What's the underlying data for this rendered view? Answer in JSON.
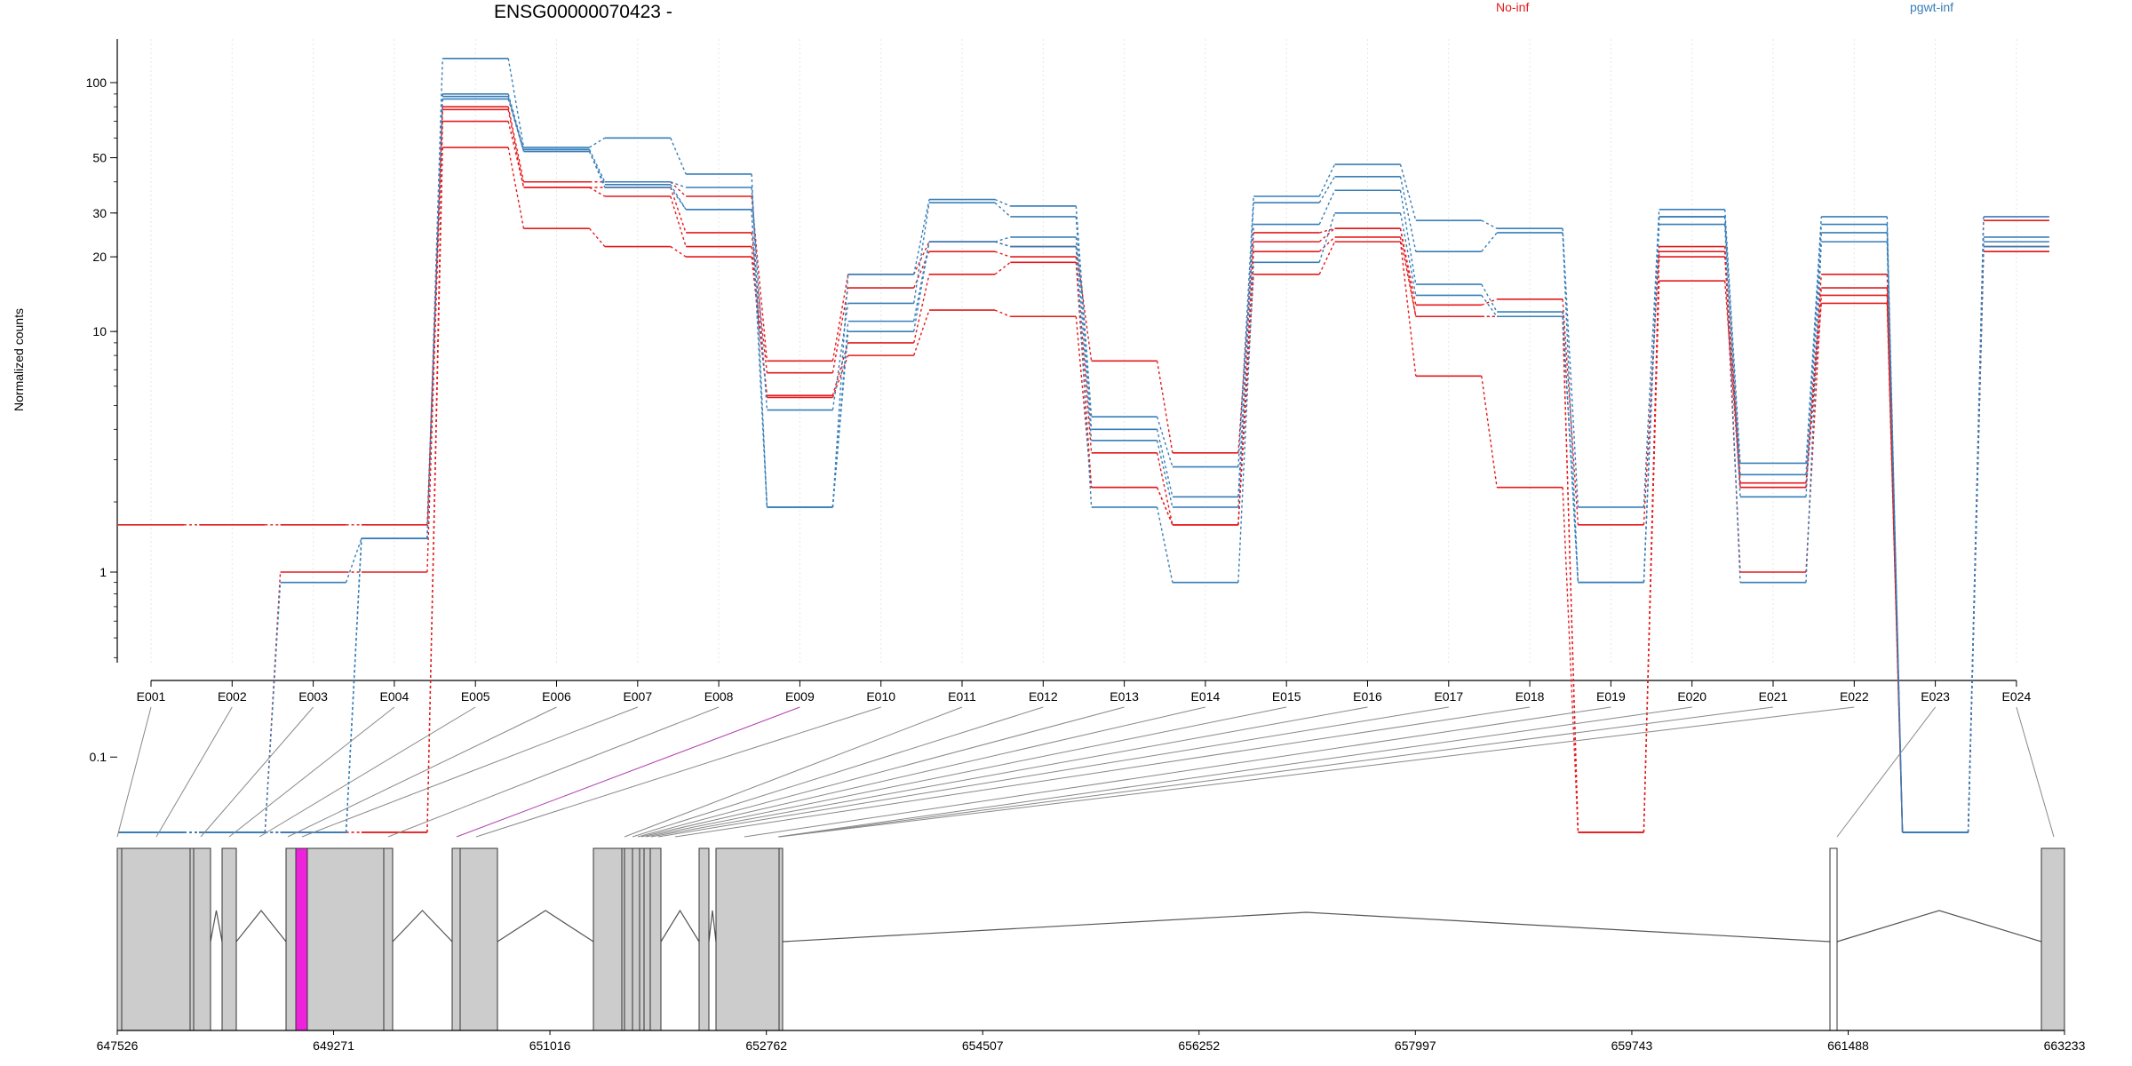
{
  "chart_data": {
    "type": "line",
    "title": "ENSG00000070423 -",
    "ylabel": "Normalized counts",
    "xlabel": "",
    "y_scale": "log-like (symlog, pseudo-count 0.1)",
    "y_ticks": [
      "0.1",
      "1",
      "10",
      "20",
      "30",
      "50",
      "100"
    ],
    "y_tick_values": [
      0.1,
      1,
      10,
      20,
      30,
      50,
      100
    ],
    "legend": [
      {
        "label": "No-inf",
        "color": "#e41a1c"
      },
      {
        "label": "pgwt-inf",
        "color": "#377eb8"
      }
    ],
    "legend_placement": "top",
    "grid": "vertical dotted",
    "categories": [
      "E001",
      "E002",
      "E003",
      "E004",
      "E005",
      "E006",
      "E007",
      "E008",
      "E009",
      "E010",
      "E011",
      "E012",
      "E013",
      "E014",
      "E015",
      "E016",
      "E017",
      "E018",
      "E019",
      "E020",
      "E021",
      "E022",
      "E023",
      "E024"
    ],
    "series": [
      {
        "group": "No-inf",
        "color": "#e41a1c",
        "values": [
          1.6,
          1.6,
          1.6,
          1.6,
          80,
          40,
          40,
          35,
          7.6,
          17,
          23,
          22,
          7.6,
          3.2,
          25,
          26,
          12.8,
          13.5,
          1.6,
          22,
          2.4,
          15,
          0,
          21
        ]
      },
      {
        "group": "No-inf",
        "color": "#e41a1c",
        "values": [
          0,
          0,
          1,
          1,
          78,
          38,
          38,
          25,
          6.8,
          15,
          21,
          20,
          3.2,
          1.6,
          23,
          26,
          11.5,
          11.5,
          0,
          21,
          1,
          14,
          0,
          22
        ]
      },
      {
        "group": "No-inf",
        "color": "#e41a1c",
        "values": [
          0,
          0,
          0,
          0,
          70,
          38,
          35,
          22,
          5.5,
          9,
          17,
          19,
          2.3,
          1.6,
          21,
          24,
          11.5,
          11.5,
          0,
          20,
          2.3,
          17,
          0,
          21
        ]
      },
      {
        "group": "No-inf",
        "color": "#e41a1c",
        "values": [
          0,
          0,
          0,
          0,
          55,
          26,
          22,
          20,
          5.4,
          8,
          12.2,
          11.5,
          2.3,
          1.6,
          17,
          23,
          6.6,
          2.3,
          0,
          16,
          2.3,
          13,
          0,
          28
        ]
      },
      {
        "group": "pgwt-inf",
        "color": "#377eb8",
        "values": [
          0,
          0,
          0,
          1.4,
          125,
          55,
          60,
          43,
          1.9,
          17,
          34,
          32,
          4.5,
          2.8,
          35,
          47,
          28,
          26,
          1.9,
          31,
          2.9,
          29,
          0,
          29
        ]
      },
      {
        "group": "pgwt-inf",
        "color": "#377eb8",
        "values": [
          0,
          0,
          0.9,
          1.4,
          90,
          54,
          40,
          38,
          4.8,
          13,
          33,
          29,
          4.0,
          2.1,
          33,
          42,
          21,
          25,
          0.9,
          29,
          2.6,
          27,
          0,
          24
        ]
      },
      {
        "group": "pgwt-inf",
        "color": "#377eb8",
        "values": [
          0,
          0,
          0,
          1.4,
          88,
          53,
          38,
          31,
          1.9,
          11,
          23,
          24,
          3.6,
          1.9,
          27,
          37,
          15.5,
          12,
          0.9,
          29,
          2.1,
          25,
          0,
          23
        ]
      },
      {
        "group": "pgwt-inf",
        "color": "#377eb8",
        "values": [
          0,
          0,
          0,
          1.4,
          86,
          53,
          39,
          31,
          1.9,
          10,
          23,
          22,
          1.9,
          0.9,
          19,
          30,
          14,
          11.5,
          0.9,
          27,
          0.9,
          23,
          0,
          22
        ]
      }
    ],
    "highlighted_exon": "E009",
    "gene_axis_ticks": [
      "647526",
      "649271",
      "651016",
      "652762",
      "654507",
      "656252",
      "657997",
      "659743",
      "661488",
      "663233"
    ],
    "gene_axis_range": [
      647526,
      663233
    ]
  }
}
